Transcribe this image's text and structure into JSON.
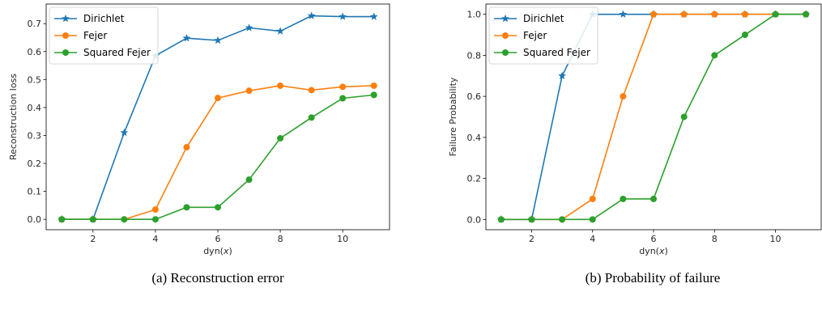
{
  "chart_data": [
    {
      "type": "line",
      "ylabel": "Reconstruction loss",
      "xlabel_prefix": "dyn(",
      "xlabel_var": "x",
      "xlabel_suffix": ")",
      "caption": "(a) Reconstruction error",
      "xlim": [
        0.5,
        11.5
      ],
      "ylim": [
        -0.037,
        0.77
      ],
      "xticks": [
        2,
        4,
        6,
        8,
        10
      ],
      "yticks": [
        0.0,
        0.1,
        0.2,
        0.3,
        0.4,
        0.5,
        0.6,
        0.7
      ],
      "ytick_labels": [
        "0.0",
        "0.1",
        "0.2",
        "0.3",
        "0.4",
        "0.5",
        "0.6",
        "0.7"
      ],
      "legend_position": "top-left",
      "x": [
        1,
        2,
        3,
        4,
        5,
        6,
        7,
        8,
        9,
        10,
        11
      ],
      "series": [
        {
          "name": "Dirichlet",
          "color": "#1f77b4",
          "marker": "star",
          "values": [
            0.0,
            0.0,
            0.31,
            0.585,
            0.648,
            0.64,
            0.685,
            0.673,
            0.728,
            0.725,
            0.725
          ]
        },
        {
          "name": "Fejer",
          "color": "#ff7f0e",
          "marker": "circle",
          "values": [
            0.0,
            0.0,
            0.0,
            0.035,
            0.258,
            0.434,
            0.46,
            0.478,
            0.462,
            0.474,
            0.478
          ]
        },
        {
          "name": "Squared Fejer",
          "color": "#2ca02c",
          "marker": "circle",
          "values": [
            0.0,
            0.0,
            0.0,
            0.0,
            0.043,
            0.043,
            0.142,
            0.29,
            0.364,
            0.433,
            0.445
          ]
        }
      ]
    },
    {
      "type": "line",
      "ylabel": "Failure Probability",
      "xlabel_prefix": "dyn(",
      "xlabel_var": "x",
      "xlabel_suffix": ")",
      "caption": "(b) Probability of failure",
      "xlim": [
        0.5,
        11.5
      ],
      "ylim": [
        -0.05,
        1.05
      ],
      "xticks": [
        2,
        4,
        6,
        8,
        10
      ],
      "yticks": [
        0.0,
        0.2,
        0.4,
        0.6,
        0.8,
        1.0
      ],
      "ytick_labels": [
        "0.0",
        "0.2",
        "0.4",
        "0.6",
        "0.8",
        "1.0"
      ],
      "legend_position": "top-left",
      "x": [
        1,
        2,
        3,
        4,
        5,
        6,
        7,
        8,
        9,
        10,
        11
      ],
      "series": [
        {
          "name": "Dirichlet",
          "color": "#1f77b4",
          "marker": "star",
          "values": [
            0.0,
            0.0,
            0.7,
            1.0,
            1.0,
            1.0,
            1.0,
            1.0,
            1.0,
            1.0,
            1.0
          ]
        },
        {
          "name": "Fejer",
          "color": "#ff7f0e",
          "marker": "circle",
          "values": [
            0.0,
            0.0,
            0.0,
            0.1,
            0.6,
            1.0,
            1.0,
            1.0,
            1.0,
            1.0,
            1.0
          ]
        },
        {
          "name": "Squared Fejer",
          "color": "#2ca02c",
          "marker": "circle",
          "values": [
            0.0,
            0.0,
            0.0,
            0.0,
            0.1,
            0.1,
            0.5,
            0.8,
            0.9,
            1.0,
            1.0
          ]
        }
      ]
    }
  ]
}
